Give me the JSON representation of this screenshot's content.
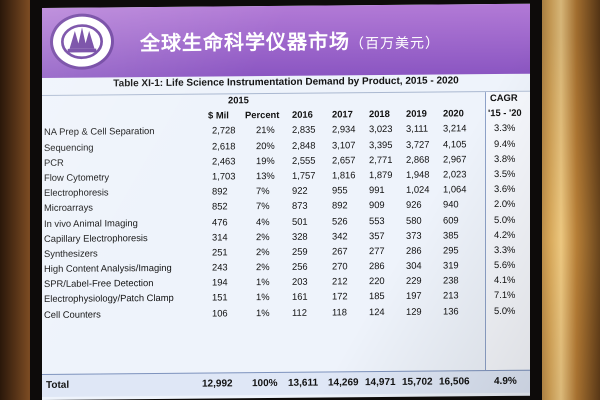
{
  "slide": {
    "title": "全球生命科学仪器市场",
    "title_unit": "（百万美元）",
    "table_title": "Table XI-1: Life Science Instrumentation Demand by Product, 2015 - 2020",
    "year_2015": "2015",
    "cagr_label": "CAGR",
    "cagr_period": "'15 - '20",
    "col_headers": [
      "$ Mil",
      "Percent",
      "2016",
      "2017",
      "2018",
      "2019",
      "2020"
    ],
    "rows": [
      {
        "label": "NA Prep & Cell Separation",
        "mil": "2,728",
        "pct": "21%",
        "y2016": "2,835",
        "y2017": "2,934",
        "y2018": "3,023",
        "y2019": "3,111",
        "y2020": "3,214",
        "cagr": "3.3%"
      },
      {
        "label": "Sequencing",
        "mil": "2,618",
        "pct": "20%",
        "y2016": "2,848",
        "y2017": "3,107",
        "y2018": "3,395",
        "y2019": "3,727",
        "y2020": "4,105",
        "cagr": "9.4%"
      },
      {
        "label": "PCR",
        "mil": "2,463",
        "pct": "19%",
        "y2016": "2,555",
        "y2017": "2,657",
        "y2018": "2,771",
        "y2019": "2,868",
        "y2020": "2,967",
        "cagr": "3.8%"
      },
      {
        "label": "Flow Cytometry",
        "mil": "1,703",
        "pct": "13%",
        "y2016": "1,757",
        "y2017": "1,816",
        "y2018": "1,879",
        "y2019": "1,948",
        "y2020": "2,023",
        "cagr": "3.5%"
      },
      {
        "label": "Electrophoresis",
        "mil": "892",
        "pct": "7%",
        "y2016": "922",
        "y2017": "955",
        "y2018": "991",
        "y2019": "1,024",
        "y2020": "1,064",
        "cagr": "3.6%"
      },
      {
        "label": "Microarrays",
        "mil": "852",
        "pct": "7%",
        "y2016": "873",
        "y2017": "892",
        "y2018": "909",
        "y2019": "926",
        "y2020": "940",
        "cagr": "2.0%"
      },
      {
        "label": "In vivo Animal Imaging",
        "mil": "476",
        "pct": "4%",
        "y2016": "501",
        "y2017": "526",
        "y2018": "553",
        "y2019": "580",
        "y2020": "609",
        "cagr": "5.0%"
      },
      {
        "label": "Capillary Electrophoresis",
        "mil": "314",
        "pct": "2%",
        "y2016": "328",
        "y2017": "342",
        "y2018": "357",
        "y2019": "373",
        "y2020": "385",
        "cagr": "4.2%"
      },
      {
        "label": "Synthesizers",
        "mil": "251",
        "pct": "2%",
        "y2016": "259",
        "y2017": "267",
        "y2018": "277",
        "y2019": "286",
        "y2020": "295",
        "cagr": "3.3%"
      },
      {
        "label": "High Content Analysis/Imaging",
        "mil": "243",
        "pct": "2%",
        "y2016": "256",
        "y2017": "270",
        "y2018": "286",
        "y2019": "304",
        "y2020": "319",
        "cagr": "5.6%"
      },
      {
        "label": "SPR/Label-Free Detection",
        "mil": "194",
        "pct": "1%",
        "y2016": "203",
        "y2017": "212",
        "y2018": "220",
        "y2019": "229",
        "y2020": "238",
        "cagr": "4.1%"
      },
      {
        "label": "Electrophysiology/Patch Clamp",
        "mil": "151",
        "pct": "1%",
        "y2016": "161",
        "y2017": "172",
        "y2018": "185",
        "y2019": "197",
        "y2020": "213",
        "cagr": "7.1%"
      },
      {
        "label": "Cell Counters",
        "mil": "106",
        "pct": "1%",
        "y2016": "112",
        "y2017": "118",
        "y2018": "124",
        "y2019": "129",
        "y2020": "136",
        "cagr": "5.0%"
      }
    ],
    "total": {
      "label": "Total",
      "mil": "12,992",
      "pct": "100%",
      "y2016": "13,611",
      "y2017": "14,269",
      "y2018": "14,971",
      "y2019": "15,702",
      "y2020": "16,506",
      "cagr": "4.9%"
    }
  }
}
